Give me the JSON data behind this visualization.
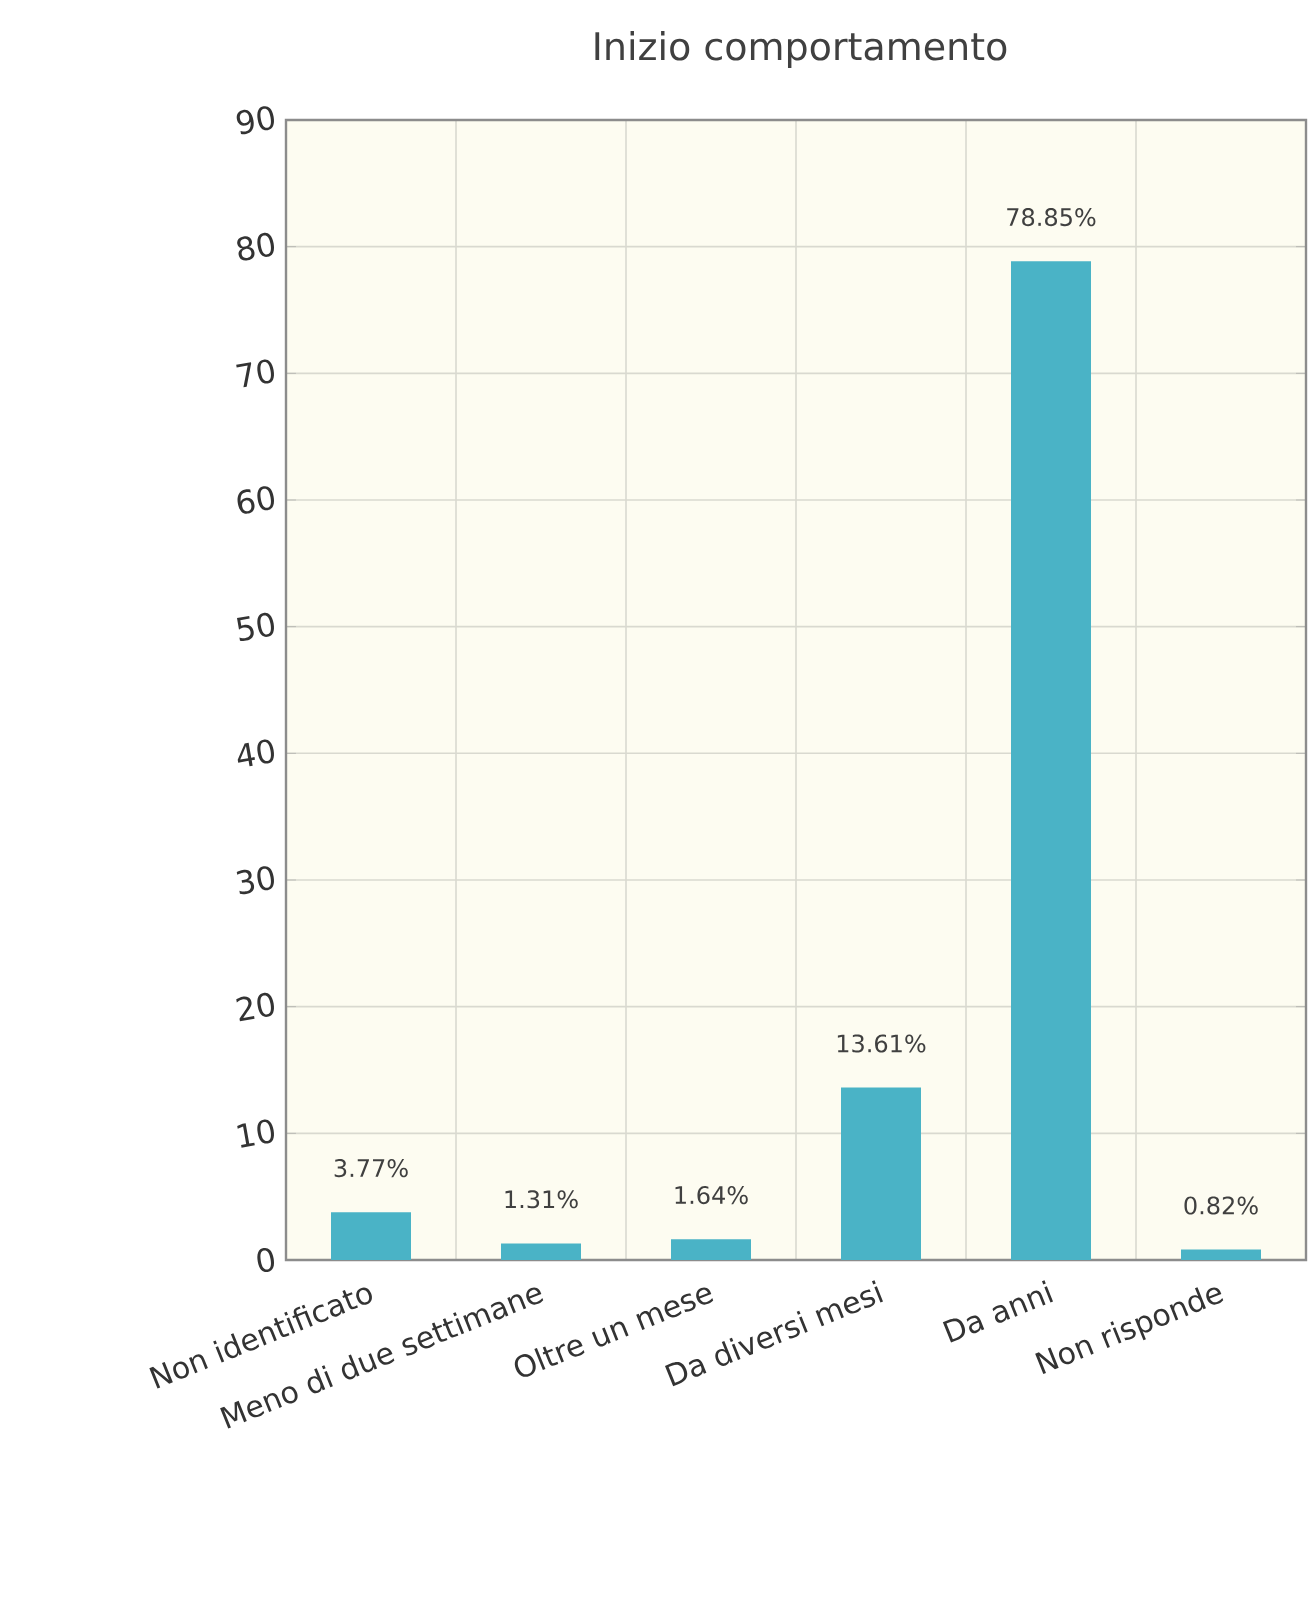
{
  "chart_data": {
    "type": "bar",
    "title": "Inizio comportamento",
    "categories": [
      "Non identificato",
      "Meno di due settimane",
      "Oltre un mese",
      "Da diversi mesi",
      "Da anni",
      "Non risponde"
    ],
    "values": [
      3.77,
      1.31,
      1.64,
      13.61,
      78.85,
      0.82
    ],
    "value_labels": [
      "3.77%",
      "1.31%",
      "1.64%",
      "13.61%",
      "78.85%",
      "0.82%"
    ],
    "color": "#4ab3c6",
    "ylim": [
      0,
      90
    ],
    "yticks": [
      0,
      10,
      20,
      30,
      40,
      50,
      60,
      70,
      80,
      90
    ],
    "grid": true
  }
}
